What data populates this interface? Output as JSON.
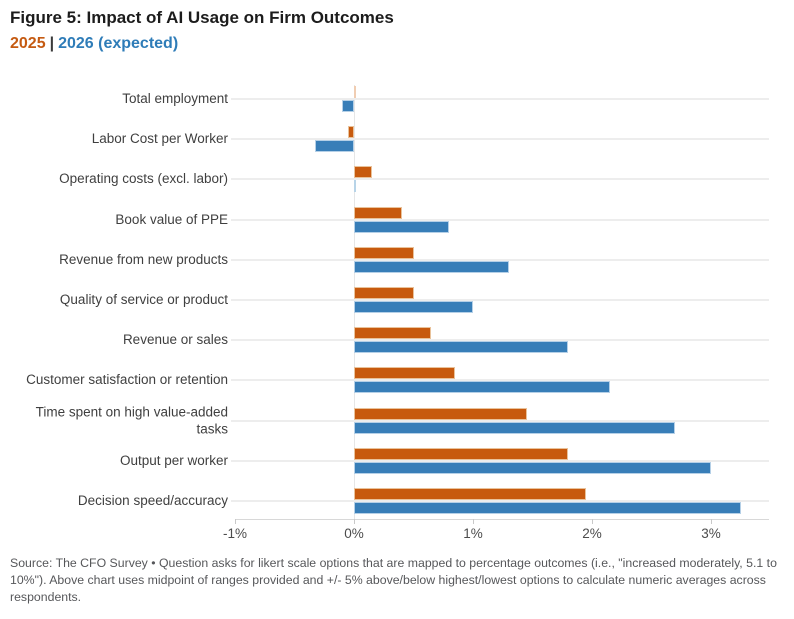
{
  "title": "Figure 5: Impact of AI Usage on Firm Outcomes",
  "legend": {
    "series1": "2025",
    "separator": "|",
    "series2": "2026 (expected)"
  },
  "colors": {
    "orange": "#c75a0e",
    "orange_light": "#f0cdb2",
    "orange_border": "#e9c29a",
    "blue": "#387eb8",
    "blue_light": "#b8d4e8",
    "blue_border": "#b5d0e7",
    "legend_orange": "#c55a11",
    "legend_blue": "#2e7cb8",
    "grid": "#ededed"
  },
  "chart_data": {
    "type": "bar",
    "orientation": "horizontal",
    "title": "Figure 5: Impact of AI Usage on Firm Outcomes",
    "unit": "%",
    "xlim": [
      -1,
      3.5
    ],
    "grid": "category leader lines only",
    "legend_position": "top-left",
    "categories": [
      "Total employment",
      "Labor Cost per Worker",
      "Operating costs (excl. labor)",
      "Book value of PPE",
      "Revenue from new products",
      "Quality of service or product",
      "Revenue or sales",
      "Customer satisfaction or retention",
      "Time spent on high value-added\ntasks",
      "Output per worker",
      "Decision speed/accuracy"
    ],
    "series": [
      {
        "name": "2025",
        "values": [
          0.0,
          -0.05,
          0.15,
          0.4,
          0.5,
          0.5,
          0.65,
          0.85,
          1.45,
          1.8,
          1.95
        ]
      },
      {
        "name": "2026 (expected)",
        "values": [
          -0.1,
          -0.33,
          0.0,
          0.8,
          1.3,
          1.0,
          1.8,
          2.15,
          2.7,
          3.0,
          3.25
        ]
      }
    ],
    "x_tick_labels": [
      "-1%",
      "0%",
      "1%",
      "2%",
      "3%"
    ],
    "x_tick_values": [
      -1,
      0,
      1,
      2,
      3
    ]
  },
  "source": "Source: The CFO Survey • Question asks for likert scale options that are mapped to percentage outcomes (i.e., \"increased moderately, 5.1 to 10%\"). Above chart uses midpoint of ranges provided and +/- 5% above/below highest/lowest options to calculate numeric averages across respondents."
}
